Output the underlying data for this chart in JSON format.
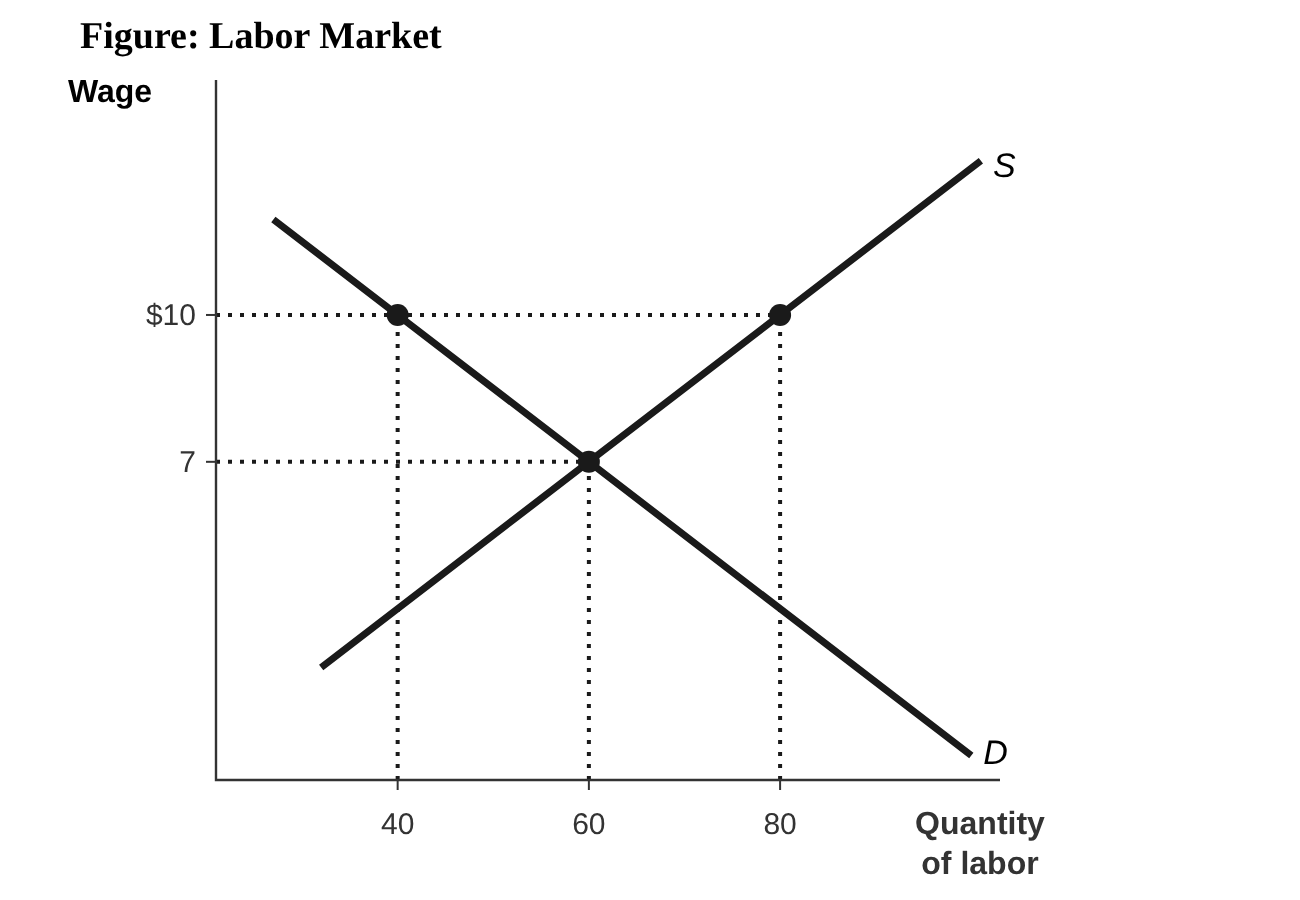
{
  "chart_data": {
    "type": "line",
    "title": "Figure: Labor Market",
    "xlabel": "Quantity of labor",
    "ylabel": "Wage",
    "xlim": [
      21,
      103
    ],
    "ylim": [
      0.5,
      14.8
    ],
    "xticks": [
      40,
      60,
      80
    ],
    "yticks": [
      7,
      {
        "value": 10,
        "label": "$10"
      }
    ],
    "line_style": "solid",
    "series": [
      {
        "name": "S",
        "color": "#1a1a1a",
        "x": [
          32,
          60,
          80,
          101
        ],
        "values": [
          2.8,
          7,
          10,
          13.15
        ]
      },
      {
        "name": "D",
        "color": "#1a1a1a",
        "x": [
          27,
          40,
          60,
          100
        ],
        "values": [
          11.95,
          10,
          7,
          1
        ]
      },
      {
        "color": "#1a1a1a",
        "line_style": "dotted",
        "x": [
          21,
          80
        ],
        "values": [
          10,
          10
        ]
      },
      {
        "color": "#1a1a1a",
        "line_style": "dotted",
        "x": [
          21,
          60
        ],
        "values": [
          7,
          7
        ]
      },
      {
        "color": "#1a1a1a",
        "line_style": "dotted",
        "x": [
          40,
          40
        ],
        "values": [
          0.5,
          10
        ]
      },
      {
        "color": "#1a1a1a",
        "line_style": "dotted",
        "x": [
          60,
          60
        ],
        "values": [
          0.5,
          7
        ]
      },
      {
        "color": "#1a1a1a",
        "line_style": "dotted",
        "x": [
          80,
          80
        ],
        "values": [
          0.5,
          10
        ]
      },
      {
        "type": "scatter",
        "color": "#1a1a1a",
        "marker": "circle",
        "x": [
          40,
          60,
          80
        ],
        "values": [
          10,
          7,
          10
        ]
      }
    ]
  }
}
